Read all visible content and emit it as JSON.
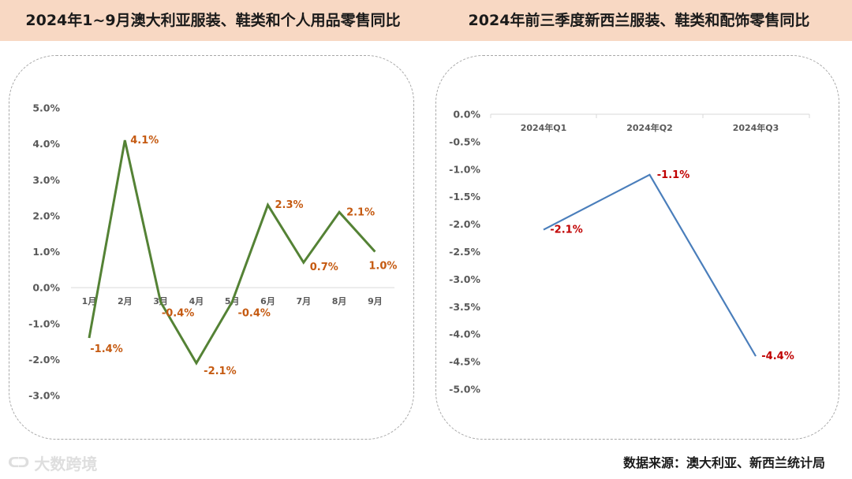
{
  "header": {
    "left_title": "2024年1~9月澳大利亚服装、鞋类和个人用品零售同比",
    "right_title": "2024年前三季度新西兰服装、鞋类和配饰零售同比"
  },
  "chart_data": [
    {
      "type": "line",
      "title": "2024年1~9月澳大利亚服装、鞋类和个人用品零售同比",
      "categories": [
        "1月",
        "2月",
        "3月",
        "4月",
        "5月",
        "6月",
        "7月",
        "8月",
        "9月"
      ],
      "series": [
        {
          "values": [
            -1.4,
            4.1,
            -0.4,
            -2.1,
            -0.4,
            2.3,
            0.7,
            2.1,
            1.0
          ]
        }
      ],
      "data_labels": [
        "-1.4%",
        "4.1%",
        "-0.4%",
        "-2.1%",
        "-0.4%",
        "2.3%",
        "0.7%",
        "2.1%",
        "1.0%"
      ],
      "y_ticks": [
        "5.0%",
        "4.0%",
        "3.0%",
        "2.0%",
        "1.0%",
        "0.0%",
        "-1.0%",
        "-2.0%",
        "-3.0%"
      ],
      "ylim": [
        -3.0,
        5.0
      ],
      "line_color": "#548235",
      "label_color": "#c55a11",
      "xlabel": "",
      "ylabel": "",
      "grid": false
    },
    {
      "type": "line",
      "title": "2024年前三季度新西兰服装、鞋类和配饰零售同比",
      "categories": [
        "2024年Q1",
        "2024年Q2",
        "2024年Q3"
      ],
      "series": [
        {
          "values": [
            -2.1,
            -1.1,
            -4.4
          ]
        }
      ],
      "data_labels": [
        "-2.1%",
        "-1.1%",
        "-4.4%"
      ],
      "y_ticks": [
        "0.0%",
        "-0.5%",
        "-1.0%",
        "-1.5%",
        "-2.0%",
        "-2.5%",
        "-3.0%",
        "-3.5%",
        "-4.0%",
        "-4.5%",
        "-5.0%"
      ],
      "ylim": [
        -5.0,
        0.0
      ],
      "line_color": "#4a7ebb",
      "label_color": "#c00000",
      "xlabel": "",
      "ylabel": "",
      "grid": false
    }
  ],
  "footer": {
    "logo_mark": "ᑕᑐ",
    "logo_text": "大数跨境",
    "source": "数据来源：澳大利亚、新西兰统计局"
  }
}
